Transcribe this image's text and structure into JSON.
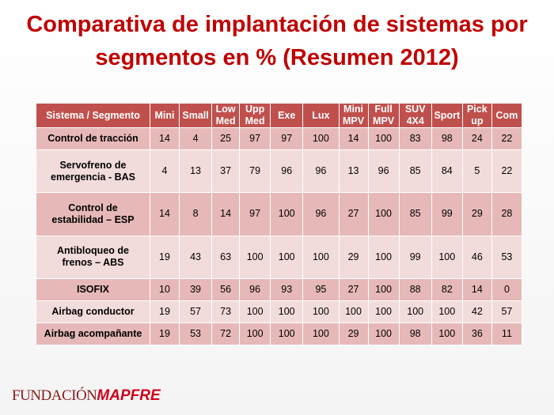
{
  "header": {
    "title": "Comparativa de implantación de sistemas por segmentos en % (Resumen 2012)"
  },
  "table": {
    "columns": [
      "Sistema / Segmento",
      "Mini",
      "Small",
      "Low\nMed",
      "Upp\nMed",
      "Exe",
      "Lux",
      "Mini\nMPV",
      "Full\nMPV",
      "SUV\n4X4",
      "Sport",
      "Pick\nup",
      "Com"
    ],
    "rows": [
      {
        "label": "Control de tracción",
        "values": [
          14,
          4,
          25,
          97,
          97,
          100,
          14,
          100,
          83,
          98,
          24,
          22
        ]
      },
      {
        "label": "Servofreno de\nemergencia - BAS",
        "values": [
          4,
          13,
          37,
          79,
          96,
          96,
          13,
          96,
          85,
          84,
          5,
          22
        ]
      },
      {
        "label": "Control de\nestabilidad – ESP",
        "values": [
          14,
          8,
          14,
          97,
          100,
          96,
          27,
          100,
          85,
          99,
          29,
          28
        ]
      },
      {
        "label": "Antibloqueo de\nfrenos – ABS",
        "values": [
          19,
          43,
          63,
          100,
          100,
          100,
          29,
          100,
          99,
          100,
          46,
          53
        ]
      },
      {
        "label": "ISOFIX",
        "values": [
          10,
          39,
          56,
          96,
          93,
          95,
          27,
          100,
          88,
          82,
          14,
          0
        ]
      },
      {
        "label": "Airbag conductor",
        "values": [
          19,
          57,
          73,
          100,
          100,
          100,
          100,
          100,
          100,
          100,
          42,
          57
        ]
      },
      {
        "label": "Airbag acompañante",
        "values": [
          19,
          53,
          72,
          100,
          100,
          100,
          29,
          100,
          98,
          100,
          36,
          11
        ]
      }
    ]
  },
  "footer": {
    "logo_part1": "FUNDACIÓN",
    "logo_part2": "MAPFRE"
  }
}
